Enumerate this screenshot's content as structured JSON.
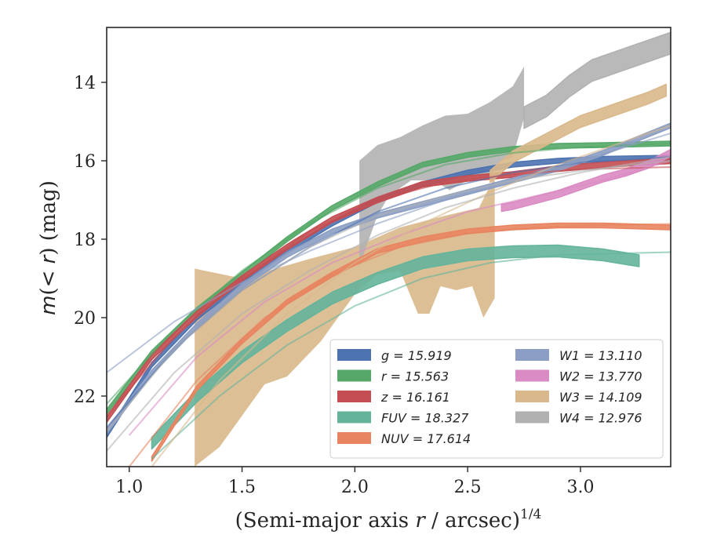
{
  "chart_data": {
    "type": "line",
    "xlabel": "(Semi-major axis r / arcsec)",
    "xlabel_parts": {
      "pre": "(Semi-major axis ",
      "var": "r",
      "post": " / arcsec)",
      "sup": "1/4"
    },
    "ylabel_parts": {
      "m": "m",
      "open": "(",
      "lt": "< ",
      "r": "r",
      "close": ")",
      "unit": " (mag)"
    },
    "xlim": [
      0.9,
      3.4
    ],
    "ylim": [
      23.8,
      12.6
    ],
    "y_inverted": true,
    "x_ticks": [
      1.0,
      1.5,
      2.0,
      2.5,
      3.0
    ],
    "x_tick_labels": [
      "1.0",
      "1.5",
      "2.0",
      "2.5",
      "3.0"
    ],
    "y_ticks": [
      14,
      16,
      18,
      20,
      22
    ],
    "y_tick_labels": [
      "14",
      "16",
      "18",
      "20",
      "22"
    ],
    "grid": false,
    "legend_position": "lower-right",
    "series": [
      {
        "name": "g",
        "label_value": "15.919",
        "color": "#4c72b0",
        "kind": "band",
        "x": [
          0.9,
          1.1,
          1.3,
          1.5,
          1.7,
          1.9,
          2.1,
          2.3,
          2.5,
          2.7,
          2.9,
          3.1,
          3.4
        ],
        "y": [
          23.0,
          21.2,
          20.0,
          19.1,
          18.3,
          17.6,
          17.0,
          16.6,
          16.3,
          16.1,
          16.0,
          15.95,
          15.92
        ],
        "width": 0.12
      },
      {
        "name": "r",
        "label_value": "15.563",
        "color": "#55a868",
        "kind": "band",
        "x": [
          0.9,
          1.1,
          1.3,
          1.5,
          1.7,
          1.9,
          2.1,
          2.3,
          2.5,
          2.7,
          2.9,
          3.1,
          3.4
        ],
        "y": [
          22.4,
          20.9,
          19.8,
          18.9,
          18.0,
          17.2,
          16.6,
          16.1,
          15.85,
          15.7,
          15.62,
          15.6,
          15.56
        ],
        "width": 0.12
      },
      {
        "name": "z",
        "label_value": "16.161",
        "color": "#c44e52",
        "kind": "band",
        "x": [
          0.9,
          1.1,
          1.3,
          1.5,
          1.7,
          1.9,
          2.1,
          2.3,
          2.5,
          2.7,
          2.9,
          3.1,
          3.4
        ],
        "y": [
          22.6,
          21.0,
          19.9,
          19.0,
          18.2,
          17.5,
          17.0,
          16.6,
          16.45,
          16.35,
          16.2,
          16.1,
          16.0
        ],
        "width": 0.14
      },
      {
        "name": "FUV",
        "label_value": "18.327",
        "color": "#64b49b",
        "kind": "band",
        "x": [
          1.1,
          1.3,
          1.5,
          1.7,
          1.9,
          2.1,
          2.3,
          2.5,
          2.7,
          2.9,
          3.1,
          3.26
        ],
        "y": [
          23.2,
          22.0,
          21.0,
          20.2,
          19.5,
          19.0,
          18.6,
          18.4,
          18.32,
          18.3,
          18.4,
          18.55
        ],
        "width": 0.3
      },
      {
        "name": "NUV",
        "label_value": "17.614",
        "color": "#e8845f",
        "kind": "band",
        "x": [
          1.1,
          1.3,
          1.5,
          1.7,
          1.9,
          2.1,
          2.3,
          2.5,
          2.7,
          2.9,
          3.1,
          3.4
        ],
        "y": [
          23.6,
          21.8,
          20.6,
          19.6,
          18.9,
          18.3,
          18.0,
          17.8,
          17.7,
          17.65,
          17.65,
          17.7
        ],
        "width": 0.12
      },
      {
        "name": "W1",
        "label_value": "13.110",
        "color": "#8c9ec3",
        "kind": "band",
        "x": [
          0.9,
          1.1,
          1.3,
          1.5,
          1.7,
          1.9,
          2.1,
          2.3,
          2.5,
          2.7,
          2.9,
          3.1,
          3.4
        ],
        "y": [
          22.9,
          21.4,
          20.2,
          19.2,
          18.4,
          17.8,
          17.4,
          17.1,
          16.8,
          16.5,
          16.2,
          15.8,
          15.1
        ],
        "width": 0.12
      },
      {
        "name": "W2",
        "label_value": "13.770",
        "color": "#da8bc3",
        "kind": "band",
        "x": [
          2.65,
          2.7,
          2.8,
          2.9,
          3.0,
          3.1,
          3.2,
          3.3,
          3.4
        ],
        "y": [
          17.2,
          17.15,
          17.0,
          16.85,
          16.65,
          16.45,
          16.3,
          16.1,
          15.8
        ],
        "width": 0.18
      },
      {
        "name": "W3",
        "label_value": "14.109",
        "color": "#d9b88b",
        "kind": "band",
        "x": [
          2.6,
          2.7,
          2.8,
          2.9,
          3.0,
          3.1,
          3.2,
          3.3,
          3.38
        ],
        "y": [
          16.4,
          15.9,
          15.6,
          15.3,
          15.0,
          14.8,
          14.6,
          14.4,
          14.2
        ],
        "width": 0.3
      },
      {
        "name": "W4",
        "label_value": "12.976",
        "color": "#b1b1b1",
        "kind": "band",
        "x": [
          2.75,
          2.85,
          2.95,
          3.05,
          3.15,
          3.25,
          3.4
        ],
        "y": [
          14.9,
          14.6,
          14.1,
          13.7,
          13.5,
          13.3,
          13.0
        ],
        "width": 0.55
      }
    ],
    "irregular_bands": [
      {
        "name": "W3-inner",
        "color": "#d9b88b",
        "upper": [
          [
            1.29,
            18.75
          ],
          [
            1.5,
            19.0
          ],
          [
            1.8,
            18.5
          ],
          [
            2.0,
            18.2
          ],
          [
            2.2,
            17.7
          ],
          [
            2.4,
            17.4
          ],
          [
            2.55,
            17.2
          ],
          [
            2.62,
            16.4
          ]
        ],
        "lower": [
          [
            1.29,
            23.8
          ],
          [
            1.4,
            23.3
          ],
          [
            1.6,
            21.7
          ],
          [
            1.7,
            21.5
          ],
          [
            1.85,
            20.6
          ],
          [
            2.0,
            19.4
          ],
          [
            2.1,
            18.9
          ],
          [
            2.2,
            18.8
          ],
          [
            2.28,
            19.9
          ],
          [
            2.33,
            19.9
          ],
          [
            2.38,
            19.2
          ],
          [
            2.45,
            19.3
          ],
          [
            2.52,
            19.2
          ],
          [
            2.57,
            20.0
          ],
          [
            2.62,
            19.5
          ]
        ]
      },
      {
        "name": "W4-inner",
        "color": "#b1b1b1",
        "upper": [
          [
            2.02,
            16.0
          ],
          [
            2.1,
            15.6
          ],
          [
            2.2,
            15.4
          ],
          [
            2.3,
            15.1
          ],
          [
            2.4,
            14.85
          ],
          [
            2.5,
            14.8
          ],
          [
            2.6,
            14.5
          ],
          [
            2.7,
            14.1
          ],
          [
            2.75,
            13.6
          ]
        ],
        "lower": [
          [
            2.02,
            18.7
          ],
          [
            2.05,
            18.2
          ],
          [
            2.1,
            17.4
          ],
          [
            2.15,
            16.9
          ],
          [
            2.25,
            16.5
          ],
          [
            2.35,
            16.5
          ],
          [
            2.42,
            16.75
          ],
          [
            2.5,
            16.5
          ],
          [
            2.6,
            16.4
          ],
          [
            2.65,
            16.0
          ],
          [
            2.7,
            15.9
          ],
          [
            2.75,
            14.9
          ]
        ]
      }
    ],
    "model_curves": [
      {
        "color": "#4c72b0",
        "x": [
          0.9,
          1.2,
          1.5,
          1.8,
          2.1,
          2.4,
          2.7,
          3.0,
          3.4
        ],
        "y": [
          22.8,
          20.8,
          19.3,
          18.2,
          17.3,
          16.7,
          16.3,
          16.05,
          15.9
        ]
      },
      {
        "color": "#55a868",
        "x": [
          0.9,
          1.2,
          1.5,
          1.8,
          2.1,
          2.4,
          2.7,
          3.0,
          3.4
        ],
        "y": [
          22.2,
          20.3,
          18.8,
          17.6,
          16.7,
          16.1,
          15.8,
          15.65,
          15.56
        ]
      },
      {
        "color": "#c44e52",
        "x": [
          0.9,
          1.2,
          1.5,
          1.8,
          2.1,
          2.4,
          2.7,
          3.0,
          3.4
        ],
        "y": [
          22.5,
          20.5,
          19.0,
          17.8,
          17.0,
          16.55,
          16.35,
          16.22,
          16.16
        ]
      },
      {
        "color": "#64b49b",
        "x": [
          1.1,
          1.4,
          1.7,
          2.0,
          2.3,
          2.6,
          2.9,
          3.4
        ],
        "y": [
          23.6,
          22.0,
          20.7,
          19.7,
          19.0,
          18.6,
          18.4,
          18.33
        ]
      },
      {
        "color": "#e8845f",
        "x": [
          1.0,
          1.3,
          1.6,
          1.9,
          2.2,
          2.5,
          2.8,
          3.1,
          3.4
        ],
        "y": [
          23.8,
          21.6,
          20.0,
          18.9,
          18.2,
          17.85,
          17.7,
          17.64,
          17.61
        ]
      },
      {
        "color": "#8c9ec3",
        "x": [
          0.9,
          1.2,
          1.5,
          1.8,
          2.1,
          2.4,
          2.7,
          3.0,
          3.4
        ],
        "y": [
          21.4,
          20.1,
          19.1,
          18.3,
          17.6,
          17.0,
          16.5,
          16.0,
          15.3
        ]
      },
      {
        "color": "#da8bc3",
        "x": [
          1.0,
          1.3,
          1.6,
          1.9,
          2.2,
          2.5,
          2.8,
          3.1,
          3.4
        ],
        "y": [
          23.0,
          21.0,
          19.6,
          18.6,
          17.9,
          17.3,
          16.9,
          16.5,
          16.0
        ]
      },
      {
        "color": "#d9b88b",
        "x": [
          1.1,
          1.4,
          1.7,
          2.0,
          2.3,
          2.6,
          2.9,
          3.2,
          3.4
        ],
        "y": [
          23.8,
          21.6,
          19.9,
          18.6,
          17.6,
          16.8,
          16.1,
          15.5,
          15.1
        ]
      },
      {
        "color": "#b1b1b1",
        "x": [
          0.9,
          1.2,
          1.5,
          1.8,
          2.1,
          2.4,
          2.7,
          3.0,
          3.4
        ],
        "y": [
          23.4,
          21.4,
          19.9,
          18.8,
          17.9,
          17.2,
          16.7,
          16.3,
          15.9
        ]
      },
      {
        "color": "#b1b1b1",
        "x": [
          0.9,
          1.2,
          1.5,
          1.8,
          2.1,
          2.4,
          2.7,
          3.0,
          3.4
        ],
        "y": [
          22.9,
          20.8,
          19.3,
          18.2,
          17.4,
          16.9,
          16.5,
          16.25,
          16.0
        ]
      }
    ],
    "legend": [
      {
        "name": "g",
        "label": "g = 15.919",
        "color": "#4c72b0"
      },
      {
        "name": "r",
        "label": "r = 15.563",
        "color": "#55a868"
      },
      {
        "name": "z",
        "label": "z = 16.161",
        "color": "#c44e52"
      },
      {
        "name": "FUV",
        "label": "FUV = 18.327",
        "color": "#64b49b"
      },
      {
        "name": "NUV",
        "label": "NUV = 17.614",
        "color": "#e8845f"
      },
      {
        "name": "W1",
        "label": "W1 = 13.110",
        "color": "#8c9ec3"
      },
      {
        "name": "W2",
        "label": "W2 = 13.770",
        "color": "#da8bc3"
      },
      {
        "name": "W3",
        "label": "W3 = 14.109",
        "color": "#d9b88b"
      },
      {
        "name": "W4",
        "label": "W4 = 12.976",
        "color": "#b1b1b1"
      }
    ]
  }
}
